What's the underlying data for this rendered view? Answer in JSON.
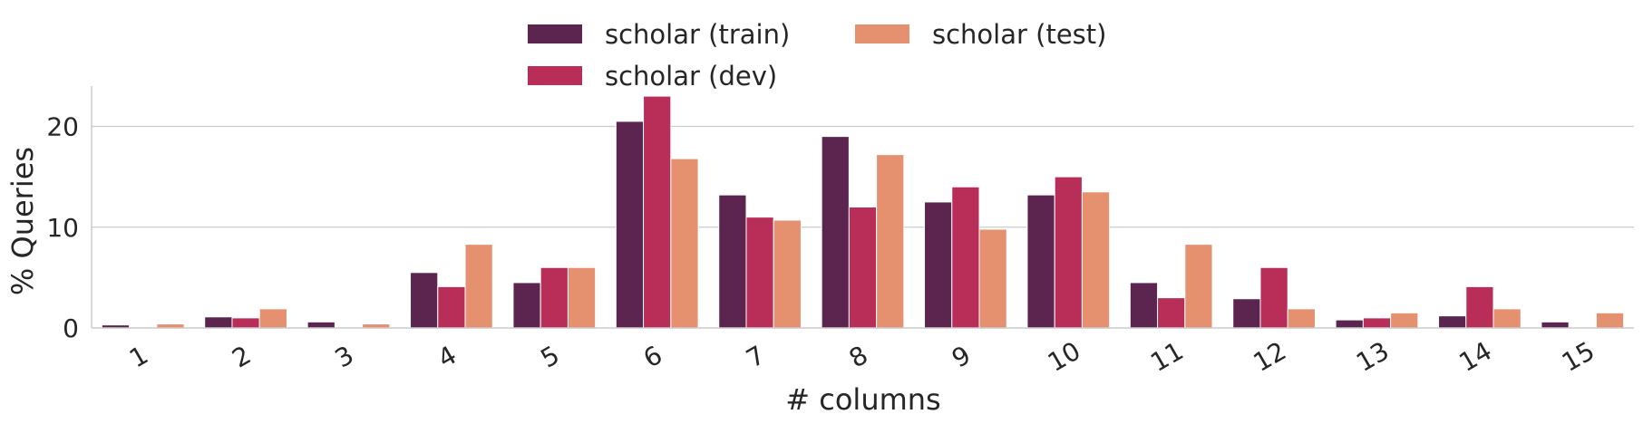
{
  "chart_data": {
    "type": "bar",
    "title": "",
    "xlabel": "# columns",
    "ylabel": "% Queries",
    "categories": [
      "1",
      "2",
      "3",
      "4",
      "5",
      "6",
      "7",
      "8",
      "9",
      "10",
      "11",
      "12",
      "13",
      "14",
      "15"
    ],
    "series": [
      {
        "name": "scholar (train)",
        "color": "#5c2550",
        "values": [
          0.3,
          1.1,
          0.6,
          5.5,
          4.5,
          20.5,
          13.2,
          19.0,
          12.5,
          13.2,
          4.5,
          2.9,
          0.8,
          1.2,
          0.6
        ]
      },
      {
        "name": "scholar (dev)",
        "color": "#b82e58",
        "values": [
          0.0,
          1.0,
          0.0,
          4.1,
          6.0,
          23.0,
          11.0,
          12.0,
          14.0,
          15.0,
          3.0,
          6.0,
          1.0,
          4.1,
          0.0
        ]
      },
      {
        "name": "scholar (test)",
        "color": "#e5916f",
        "values": [
          0.4,
          1.9,
          0.4,
          8.3,
          6.0,
          16.8,
          10.7,
          17.2,
          9.8,
          13.5,
          8.3,
          1.9,
          1.5,
          1.9,
          1.5
        ]
      }
    ],
    "ylim": [
      0,
      24
    ],
    "yticks": [
      0,
      10,
      20
    ],
    "grid": true,
    "legend_position": "top-center"
  }
}
